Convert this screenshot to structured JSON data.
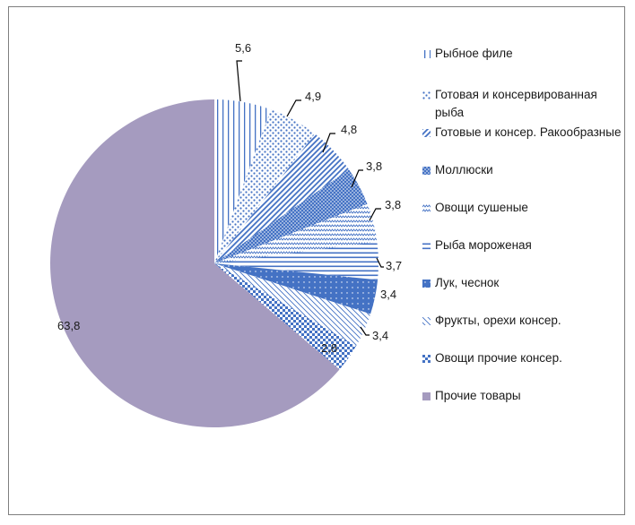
{
  "chart_data": {
    "type": "pie",
    "title": "",
    "legend_position": "right",
    "slices": [
      {
        "label": "Рыбное филе",
        "value": 5.6,
        "value_label": "5,6",
        "pattern": "vlines",
        "color": "#4472c4"
      },
      {
        "label": "Готовая и консервированная рыба",
        "value": 4.9,
        "value_label": "4,9",
        "pattern": "dots",
        "color": "#4472c4"
      },
      {
        "label": "Готовые и консер. Ракообразные",
        "value": 4.8,
        "value_label": "4,8",
        "pattern": "diagonal",
        "color": "#4472c4"
      },
      {
        "label": "Моллюски",
        "value": 3.8,
        "value_label": "3,8",
        "pattern": "dense-dots",
        "color": "#4472c4"
      },
      {
        "label": "Овощи сушеные",
        "value": 3.8,
        "value_label": "3,8",
        "pattern": "zigzag",
        "color": "#4472c4"
      },
      {
        "label": "Рыба мороженая",
        "value": 3.7,
        "value_label": "3,7",
        "pattern": "hlines",
        "color": "#4472c4"
      },
      {
        "label": "Лук, чеснок",
        "value": 3.4,
        "value_label": "3,4",
        "pattern": "solid-dots",
        "color": "#4472c4"
      },
      {
        "label": "Фрукты, орехи консер.",
        "value": 3.4,
        "value_label": "3,4",
        "pattern": "back-diagonal",
        "color": "#4472c4"
      },
      {
        "label": "Овощи прочие консер.",
        "value": 2.8,
        "value_label": "2,8",
        "pattern": "checker",
        "color": "#4472c4"
      },
      {
        "label": "Прочие товары",
        "value": 63.8,
        "value_label": "63,8",
        "pattern": "solid",
        "color": "#a59bbf"
      }
    ]
  }
}
